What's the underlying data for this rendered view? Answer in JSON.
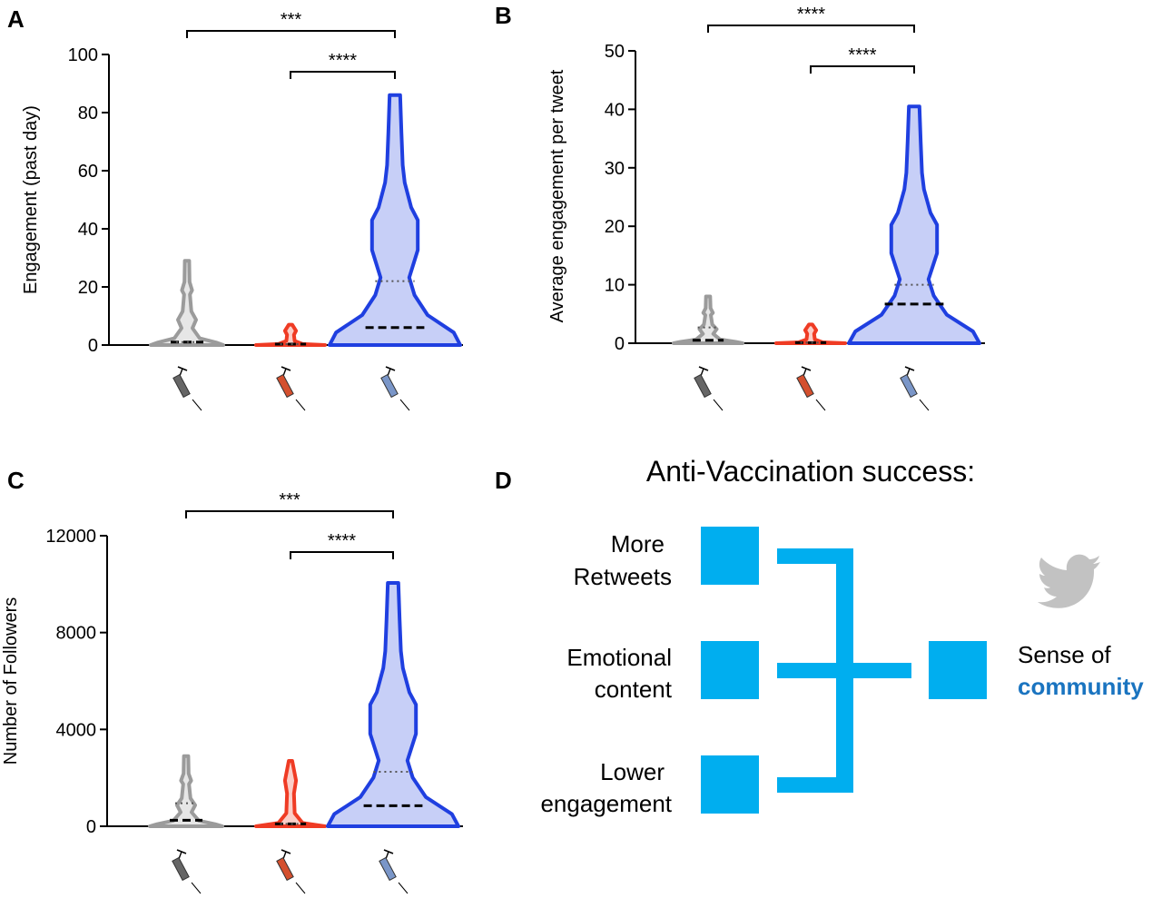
{
  "chart_data": [
    {
      "panel": "A",
      "type": "violin",
      "ylabel": "Engagement (past day)",
      "ylim": [
        0,
        100
      ],
      "yticks": [
        0,
        20,
        40,
        60,
        80,
        100
      ],
      "series": [
        {
          "color": "#9b9b9b",
          "max": 29,
          "median": 1,
          "quartile": 1
        },
        {
          "color": "#ef3b24",
          "max": 7,
          "median": 0.3,
          "quartile": 0.3
        },
        {
          "color": "#1f3fe0",
          "max": 86,
          "median": 6,
          "quartile": 22
        }
      ],
      "significance": [
        {
          "from": 0,
          "to": 2,
          "label": "***"
        },
        {
          "from": 1,
          "to": 2,
          "label": "****"
        }
      ]
    },
    {
      "panel": "B",
      "type": "violin",
      "ylabel": "Average engagement per tweet",
      "ylim": [
        0,
        50
      ],
      "yticks": [
        0,
        10,
        20,
        30,
        40,
        50
      ],
      "series": [
        {
          "color": "#9b9b9b",
          "max": 8,
          "median": 0.5,
          "quartile": 2.7
        },
        {
          "color": "#ef3b24",
          "max": 3.2,
          "median": 0.1,
          "quartile": 0.1
        },
        {
          "color": "#1f3fe0",
          "max": 40.5,
          "median": 6.7,
          "quartile": 10
        }
      ],
      "significance": [
        {
          "from": 0,
          "to": 2,
          "label": "****"
        },
        {
          "from": 1,
          "to": 2,
          "label": "****"
        }
      ]
    },
    {
      "panel": "C",
      "type": "violin",
      "ylabel": "Number of Followers",
      "ylim": [
        0,
        12000
      ],
      "yticks": [
        0,
        4000,
        8000,
        12000
      ],
      "series": [
        {
          "color": "#9b9b9b",
          "max": 2900,
          "median": 250,
          "quartile": 950
        },
        {
          "color": "#ef3b24",
          "max": 2700,
          "median": 100,
          "quartile": 100
        },
        {
          "color": "#1f3fe0",
          "max": 10050,
          "median": 850,
          "quartile": 2250
        }
      ],
      "significance": [
        {
          "from": 0,
          "to": 2,
          "label": "***"
        },
        {
          "from": 1,
          "to": 2,
          "label": "****"
        }
      ]
    }
  ],
  "panel_labels": [
    "A",
    "B",
    "C",
    "D"
  ],
  "diagram": {
    "title": "Anti-Vaccination success:",
    "inputs": [
      {
        "line1": "More",
        "line2": "Retweets"
      },
      {
        "line1": "Emotional",
        "line2": "content"
      },
      {
        "line1": "Lower",
        "line2": "engagement"
      }
    ],
    "output_line1": "Sense of",
    "output_line2": "community",
    "box_color": "#00aeef",
    "accent_color": "#1a74c0",
    "icon": "twitter-bird-icon"
  }
}
